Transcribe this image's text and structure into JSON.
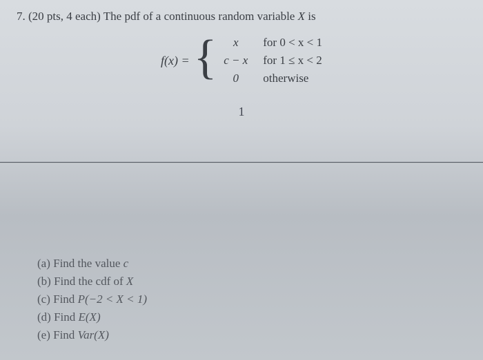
{
  "question": {
    "number": "7.",
    "points": "(20 pts, 4 each)",
    "stem": "The pdf of a continuous random variable",
    "var": "X",
    "stem_tail": "is"
  },
  "pdf": {
    "lhs": "f(x) =",
    "cases": [
      {
        "value": "x",
        "condition": "for 0 < x < 1"
      },
      {
        "value": "c − x",
        "condition": "for 1 ≤ x < 2"
      },
      {
        "value": "0",
        "condition": "otherwise"
      }
    ],
    "extra_label": "1"
  },
  "parts": {
    "a": {
      "label": "(a)",
      "text_pre": "Find the value",
      "tail_italic": "c"
    },
    "b": {
      "label": "(b)",
      "text_pre": "Find the cdf of",
      "tail_italic": "X"
    },
    "c": {
      "label": "(c)",
      "text_pre": "Find",
      "tail_italic": "P(−2 < X < 1)"
    },
    "d": {
      "label": "(d)",
      "text_pre": "Find",
      "tail_italic": "E(X)"
    },
    "e": {
      "label": "(e)",
      "text_pre": "Find",
      "tail_italic": "Var(X)"
    }
  },
  "colors": {
    "text": "#3a3e44",
    "line": "#7f848b"
  }
}
